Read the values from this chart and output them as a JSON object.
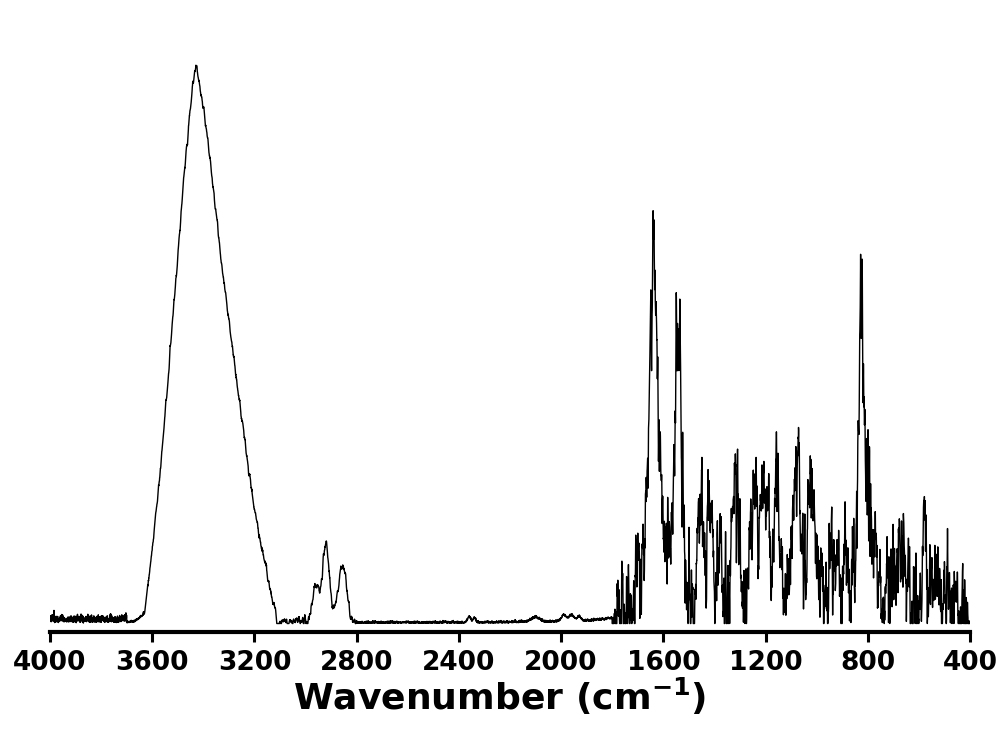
{
  "xlim": [
    4000,
    400
  ],
  "ylim": [
    -0.015,
    1.05
  ],
  "xticks": [
    4000,
    3600,
    3200,
    2800,
    2400,
    2000,
    1600,
    1200,
    800,
    400
  ],
  "line_color": "#000000",
  "background_color": "#ffffff",
  "line_width": 1.0,
  "xlabel_fontsize": 26,
  "xlabel_fontweight": "bold",
  "tick_fontsize": 19,
  "tick_fontweight": "bold"
}
